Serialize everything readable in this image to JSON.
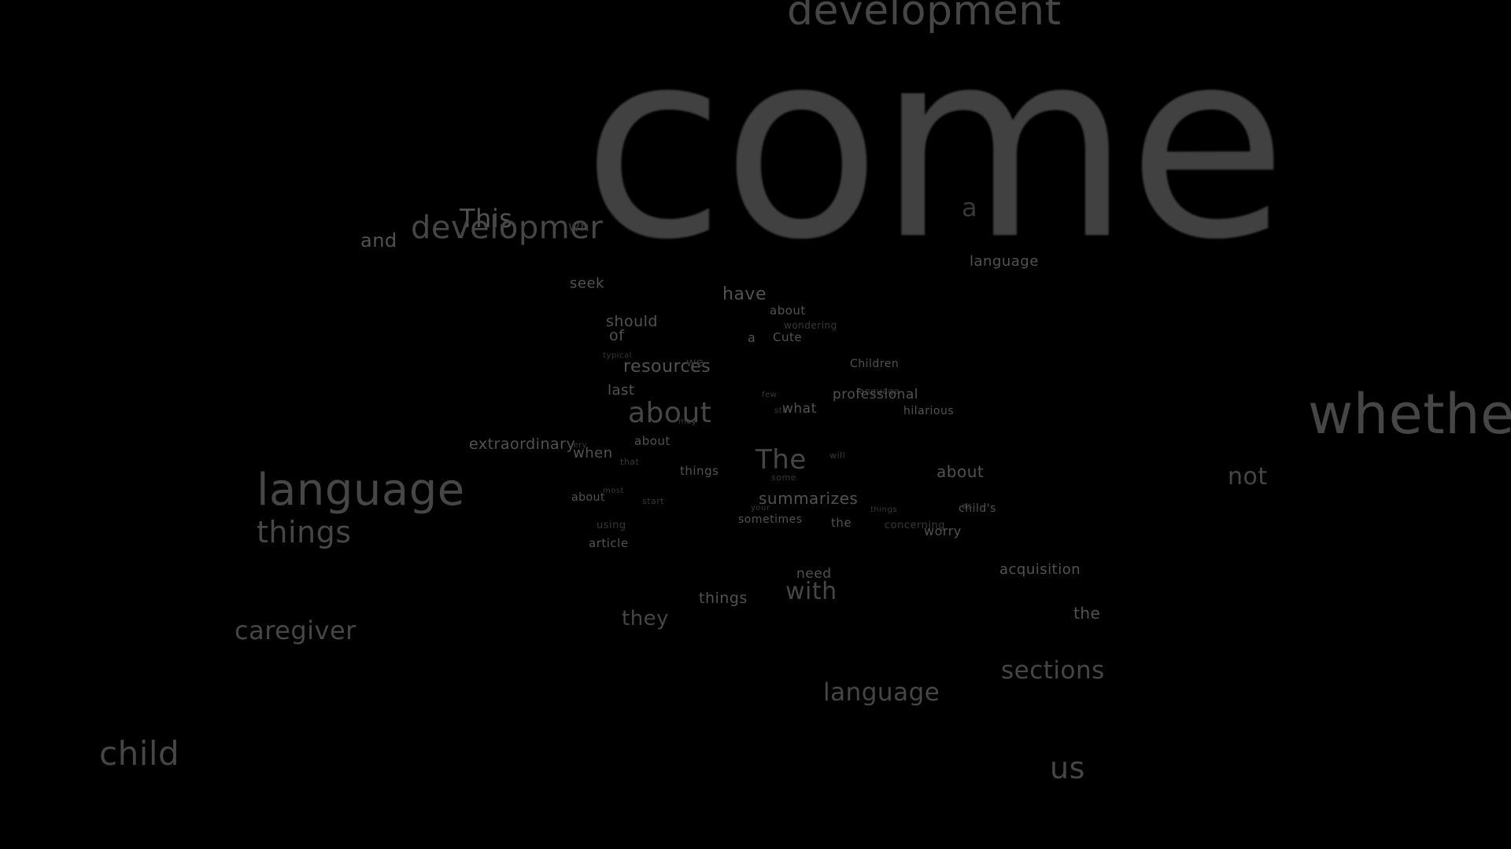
{
  "words": {
    "development_top": "development",
    "come": "come",
    "a_hidden": "a",
    "this": "This",
    "and": "and",
    "development_left": "developmer",
    "wh": "wh",
    "language_1": "language",
    "seek": "seek",
    "have": "have",
    "about_1": "about",
    "wondering": "wondering",
    "should": "should",
    "of": "of",
    "a_1": "a",
    "cute": "Cute",
    "typical": "typical",
    "resources": "resources",
    "we": "we",
    "children": "Children",
    "last": "last",
    "few": "few",
    "language_small": "language",
    "professional": "professional",
    "hilarious": "hilarious",
    "about_big": "about",
    "may": "may",
    "stu": "stu",
    "what": "what",
    "whether": "whethe",
    "extraordinary": "extraordinary",
    "very": "very",
    "when": "when",
    "about_2": "about",
    "that": "that",
    "the_big": "The",
    "will": "will",
    "things_1": "things",
    "some": "some",
    "about_3": "about",
    "not": "not",
    "language_big": "language",
    "things_big": "things",
    "about_4": "about",
    "most": "most",
    "start": "start",
    "summarizes": "summarizes",
    "your": "your",
    "things_2": "things",
    "as": "as",
    "childs": "child's",
    "sometimes": "sometimes",
    "using": "using",
    "the_1": "the",
    "concerning": "concerning",
    "worry": "worry",
    "article": "article",
    "acquisition": "acquisition",
    "need": "need",
    "things_3": "things",
    "with": "with",
    "the_2": "the",
    "they": "they",
    "caregiver": "caregiver",
    "sections": "sections",
    "language_3": "language",
    "child": "child",
    "us": "us"
  }
}
